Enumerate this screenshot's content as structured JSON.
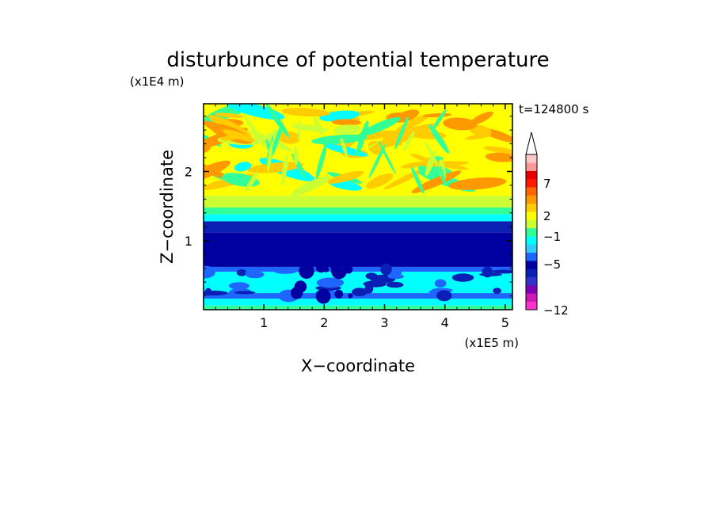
{
  "chart_data": {
    "type": "heatmap",
    "title": "disturbunce of potential temperature",
    "xlabel": "X−coordinate",
    "ylabel": "Z−coordinate",
    "x_scale_label": "(x1E5 m)",
    "y_scale_label": "(x1E4 m)",
    "time_label": "t=124800 s",
    "xlim": [
      0,
      5.12
    ],
    "ylim": [
      0,
      2.98
    ],
    "x_ticks": [
      "1",
      "2",
      "3",
      "4",
      "5"
    ],
    "x_tick_values": [
      1,
      2,
      3,
      4,
      5
    ],
    "y_ticks": [
      "1",
      "2"
    ],
    "y_tick_values": [
      1,
      2
    ],
    "colorbar": {
      "ticks": [
        "7",
        "2",
        "−1",
        "−5",
        "−12"
      ],
      "tick_values": [
        7,
        2,
        -1,
        -5,
        -12
      ],
      "extend": "max",
      "colors": [
        "#ff33cc",
        "#cc1ab3",
        "#8000b3",
        "#3333cc",
        "#0a1fb3",
        "#0000a0",
        "#1f66ff",
        "#33ccff",
        "#00ffff",
        "#33ff99",
        "#ccff33",
        "#ffff00",
        "#ffcc00",
        "#ff9900",
        "#ff6600",
        "#ff1a00",
        "#e60000",
        "#ff9999",
        "#ffc8c8"
      ]
    },
    "layers": [
      {
        "z_range": [
          0.0,
          0.06
        ],
        "color": "#33ff99"
      },
      {
        "z_range": [
          0.06,
          0.16
        ],
        "color": "#00ffff"
      },
      {
        "z_range": [
          0.16,
          0.24
        ],
        "color": "#1f66ff"
      },
      {
        "z_range": [
          0.24,
          0.55
        ],
        "color": "#00ffff"
      },
      {
        "z_range": [
          0.55,
          0.62
        ],
        "color": "#1f66ff"
      },
      {
        "z_range": [
          0.62,
          1.12
        ],
        "color": "#0000a0"
      },
      {
        "z_range": [
          1.12,
          1.28
        ],
        "color": "#0a1fb3"
      },
      {
        "z_range": [
          1.28,
          1.38
        ],
        "color": "#00ffff"
      },
      {
        "z_range": [
          1.38,
          1.48
        ],
        "color": "#33ff99"
      },
      {
        "z_range": [
          1.48,
          1.65
        ],
        "color": "#ccff33"
      },
      {
        "z_range": [
          1.65,
          2.98
        ],
        "color": "#ffff00"
      }
    ]
  }
}
